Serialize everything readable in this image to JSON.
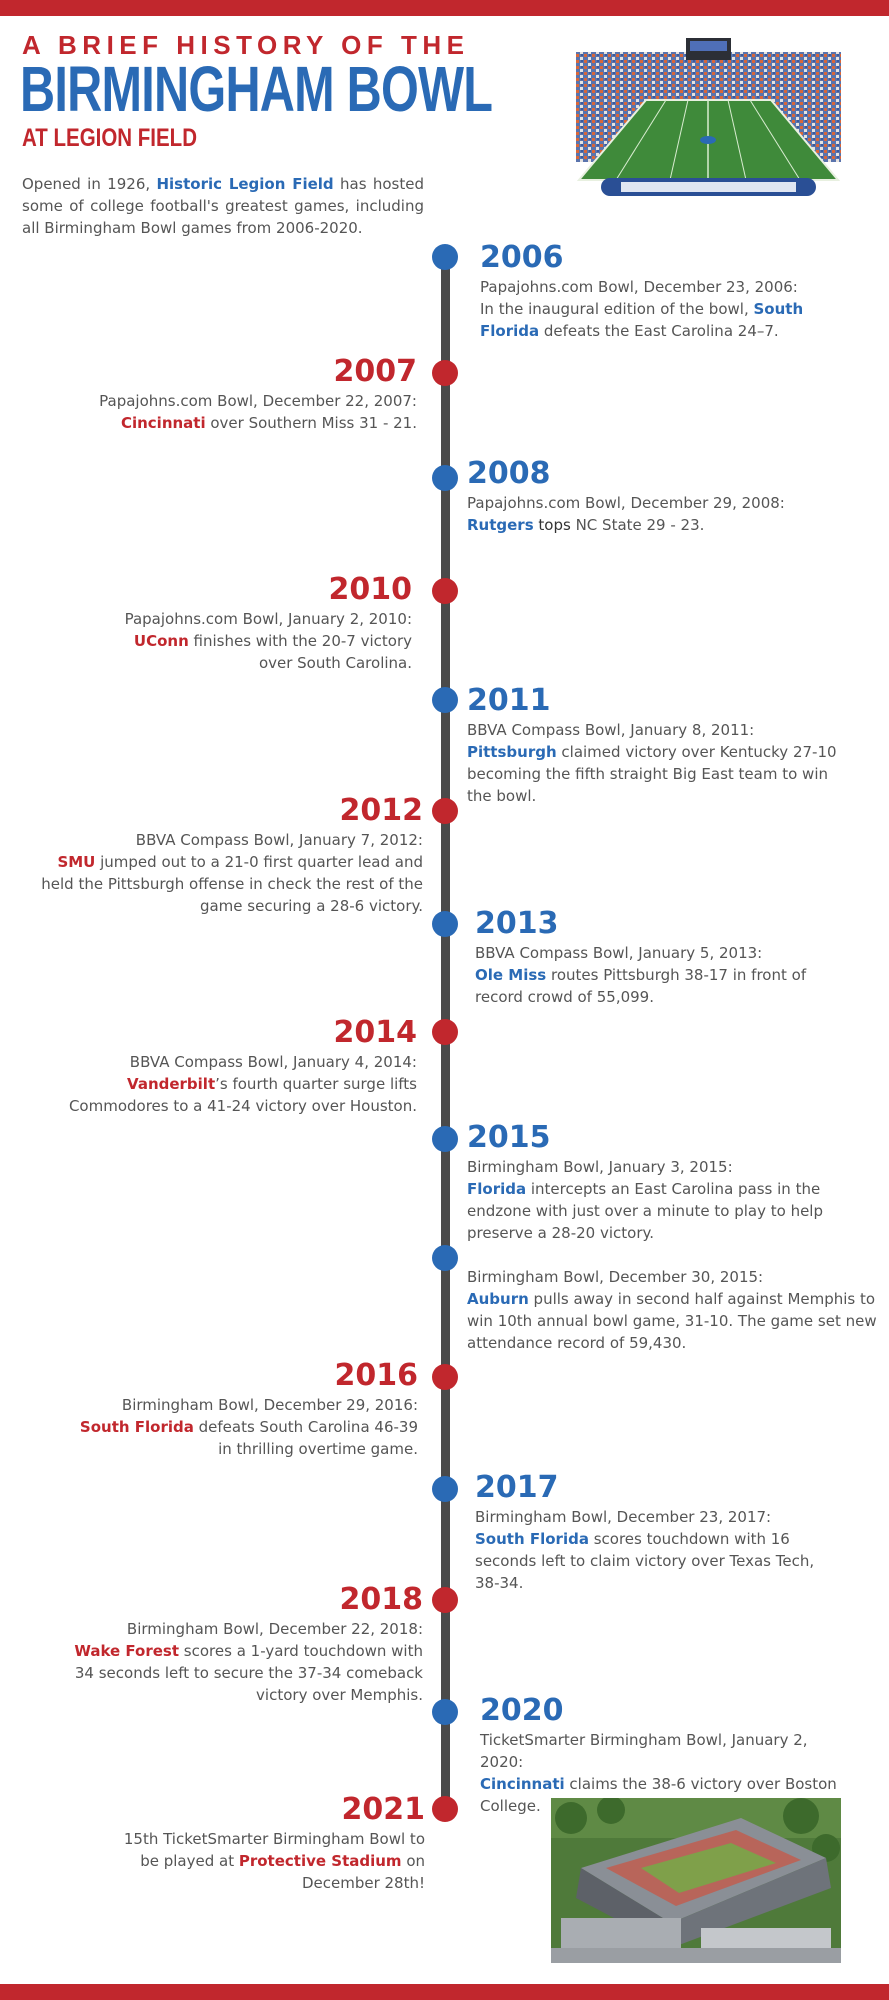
{
  "header": {
    "kicker": "A BRIEF HISTORY OF THE",
    "title": "BIRMINGHAM BOWL",
    "subtitle": "AT LEGION FIELD"
  },
  "intro": {
    "text_before": "Opened in 1926, ",
    "highlight": "Historic Legion Field",
    "text_after": " has hosted some of college football's greatest games, including all Birmingham Bowl games from 2006-2020."
  },
  "colors": {
    "blue": "#2a6ab5",
    "red": "#c1272d",
    "line": "#4a4a4a"
  },
  "timeline": [
    {
      "year": "2006",
      "line1": "Papajohns.com Bowl, December 23, 2006:",
      "before": "In the inaugural edition of the bowl, ",
      "team": "South Florida",
      "after": " defeats the East Carolina 24–7."
    },
    {
      "year": "2007",
      "line1": "Papajohns.com Bowl, December 22, 2007:",
      "before": "",
      "team": "Cincinnati",
      "after": " over Southern Miss 31 - 21."
    },
    {
      "year": "2008",
      "line1": "Papajohns.com Bowl, December 29, 2008:",
      "before": "",
      "team": "Rutgers",
      "mid": " tops",
      "after": " NC State 29 - 23."
    },
    {
      "year": "2010",
      "line1": "Papajohns.com Bowl, January 2, 2010:",
      "before": "",
      "team": "UConn",
      "after": " finishes with the 20-7 victory over South Carolina."
    },
    {
      "year": "2011",
      "line1": "BBVA Compass Bowl, January 8, 2011:",
      "before": "",
      "team": "Pittsburgh",
      "after": " claimed victory over Kentucky 27-10 becoming the fifth straight Big East team to win the bowl."
    },
    {
      "year": "2012",
      "line1": "BBVA Compass Bowl, January 7, 2012:",
      "before": "",
      "team": "SMU",
      "after": " jumped out to a 21-0 first quarter lead and held the Pittsburgh offense in check the rest of the game securing a 28-6 victory."
    },
    {
      "year": "2013",
      "line1": "BBVA Compass Bowl, January 5, 2013:",
      "before": "",
      "team": "Ole Miss",
      "after": " routes Pittsburgh 38-17 in front of record crowd of 55,099."
    },
    {
      "year": "2014",
      "line1": "BBVA Compass Bowl, January 4, 2014:",
      "before": "",
      "team": "Vanderbilt",
      "after": "’s fourth quarter surge lifts Commodores to a 41-24 victory over Houston."
    },
    {
      "year": "2015",
      "line1": "Birmingham Bowl, January 3, 2015:",
      "before": "",
      "team": "Florida",
      "after": " intercepts an East Carolina pass in the endzone with just over a minute to play to help preserve a 28-20 victory."
    },
    {
      "year": "",
      "line1": "Birmingham Bowl, December 30, 2015:",
      "before": "",
      "team": "Auburn",
      "after": " pulls away in second half against Memphis to win 10th annual bowl game, 31-10. The game set new attendance record of 59,430."
    },
    {
      "year": "2016",
      "line1": "Birmingham Bowl, December 29, 2016:",
      "before": "",
      "team": "South Florida",
      "after": " defeats South Carolina 46-39 in thrilling overtime game."
    },
    {
      "year": "2017",
      "line1": "Birmingham Bowl, December 23, 2017:",
      "before": "",
      "team": "South Florida",
      "after": " scores touchdown with 16 seconds left to claim victory over Texas Tech, 38-34."
    },
    {
      "year": "2018",
      "line1": "Birmingham Bowl, December 22, 2018:",
      "before": "",
      "team": "Wake Forest",
      "after": " scores a 1-yard touchdown with 34 seconds left to secure the 37-34 comeback victory over Memphis."
    },
    {
      "year": "2020",
      "line1": "TicketSmarter Birmingham Bowl, January 2, 2020:",
      "before": "",
      "team": "Cincinnati",
      "after": " claims the 38-6 victory over Boston College."
    },
    {
      "year": "2021",
      "line1": "",
      "before": "15th TicketSmarter Birmingham Bowl to be played at ",
      "team": "Protective Stadium",
      "after": " on December 28th!"
    }
  ]
}
